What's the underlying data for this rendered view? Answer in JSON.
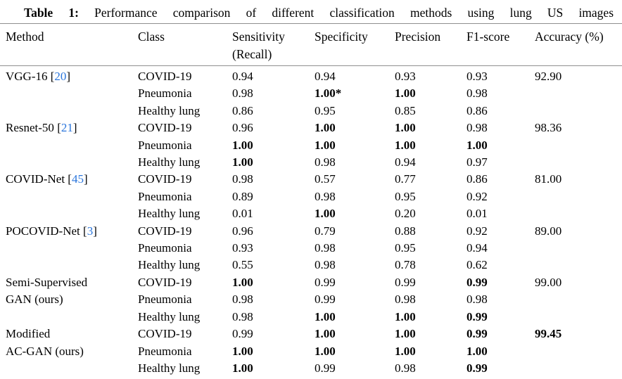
{
  "colors": {
    "citation": "#2b76dc",
    "rule": "#9b9b9b",
    "text": "#000000"
  },
  "title": {
    "prefix": "Table 1:",
    "text": "Performance comparison of different classification methods using lung US images"
  },
  "table": {
    "columns": [
      {
        "label": "Method"
      },
      {
        "label": "Class"
      },
      {
        "label": "Sensitivity",
        "sub": "(Recall)"
      },
      {
        "label": "Specificity"
      },
      {
        "label": "Precision"
      },
      {
        "label": "F1-score"
      },
      {
        "label": "Accuracy (%)"
      }
    ],
    "rows": [
      {
        "method": "VGG-16",
        "cite": "20",
        "class": "COVID-19",
        "values": [
          {
            "v": "0.94"
          },
          {
            "v": "0.94"
          },
          {
            "v": "0.93"
          },
          {
            "v": "0.93"
          },
          {
            "v": "92.90"
          }
        ]
      },
      {
        "method": "",
        "cite": "",
        "class": "Pneumonia",
        "values": [
          {
            "v": "0.98"
          },
          {
            "v": "1.00*",
            "b": true
          },
          {
            "v": "1.00",
            "b": true
          },
          {
            "v": "0.98"
          },
          {
            "v": ""
          }
        ]
      },
      {
        "method": "",
        "cite": "",
        "class": "Healthy lung",
        "values": [
          {
            "v": "0.86"
          },
          {
            "v": "0.95"
          },
          {
            "v": "0.85"
          },
          {
            "v": "0.86"
          },
          {
            "v": ""
          }
        ]
      },
      {
        "method": "Resnet-50",
        "cite": "21",
        "class": "COVID-19",
        "values": [
          {
            "v": "0.96"
          },
          {
            "v": "1.00",
            "b": true
          },
          {
            "v": "1.00",
            "b": true
          },
          {
            "v": "0.98"
          },
          {
            "v": "98.36"
          }
        ]
      },
      {
        "method": "",
        "cite": "",
        "class": "Pneumonia",
        "values": [
          {
            "v": "1.00",
            "b": true
          },
          {
            "v": "1.00",
            "b": true
          },
          {
            "v": "1.00",
            "b": true
          },
          {
            "v": "1.00",
            "b": true
          },
          {
            "v": ""
          }
        ]
      },
      {
        "method": "",
        "cite": "",
        "class": "Healthy lung",
        "values": [
          {
            "v": "1.00",
            "b": true
          },
          {
            "v": "0.98"
          },
          {
            "v": "0.94"
          },
          {
            "v": "0.97"
          },
          {
            "v": ""
          }
        ]
      },
      {
        "method": "COVID-Net",
        "cite": "45",
        "class": "COVID-19",
        "values": [
          {
            "v": "0.98"
          },
          {
            "v": "0.57"
          },
          {
            "v": "0.77"
          },
          {
            "v": "0.86"
          },
          {
            "v": "81.00"
          }
        ]
      },
      {
        "method": "",
        "cite": "",
        "class": "Pneumonia",
        "values": [
          {
            "v": "0.89"
          },
          {
            "v": "0.98"
          },
          {
            "v": "0.95"
          },
          {
            "v": "0.92"
          },
          {
            "v": ""
          }
        ]
      },
      {
        "method": "",
        "cite": "",
        "class": "Healthy lung",
        "values": [
          {
            "v": "0.01"
          },
          {
            "v": "1.00",
            "b": true
          },
          {
            "v": "0.20"
          },
          {
            "v": "0.01"
          },
          {
            "v": ""
          }
        ]
      },
      {
        "method": "POCOVID-Net",
        "cite": "3",
        "class": "COVID-19",
        "values": [
          {
            "v": "0.96"
          },
          {
            "v": "0.79"
          },
          {
            "v": "0.88"
          },
          {
            "v": "0.92"
          },
          {
            "v": "89.00"
          }
        ]
      },
      {
        "method": "",
        "cite": "",
        "class": "Pneumonia",
        "values": [
          {
            "v": "0.93"
          },
          {
            "v": "0.98"
          },
          {
            "v": "0.95"
          },
          {
            "v": "0.94"
          },
          {
            "v": ""
          }
        ]
      },
      {
        "method": "",
        "cite": "",
        "class": "Healthy lung",
        "values": [
          {
            "v": "0.55"
          },
          {
            "v": "0.98"
          },
          {
            "v": "0.78"
          },
          {
            "v": "0.62"
          },
          {
            "v": ""
          }
        ]
      },
      {
        "method": "Semi-Supervised",
        "cite": "",
        "class": "COVID-19",
        "values": [
          {
            "v": "1.00",
            "b": true
          },
          {
            "v": "0.99"
          },
          {
            "v": "0.99"
          },
          {
            "v": "0.99",
            "b": true
          },
          {
            "v": "99.00"
          }
        ]
      },
      {
        "method": "GAN (ours)",
        "cite": "",
        "class": "Pneumonia",
        "values": [
          {
            "v": "0.98"
          },
          {
            "v": "0.99"
          },
          {
            "v": "0.98"
          },
          {
            "v": "0.98"
          },
          {
            "v": ""
          }
        ]
      },
      {
        "method": "",
        "cite": "",
        "class": "Healthy lung",
        "values": [
          {
            "v": "0.98"
          },
          {
            "v": "1.00",
            "b": true
          },
          {
            "v": "1.00",
            "b": true
          },
          {
            "v": "0.99",
            "b": true
          },
          {
            "v": ""
          }
        ]
      },
      {
        "method": "Modified",
        "cite": "",
        "class": "COVID-19",
        "values": [
          {
            "v": "0.99"
          },
          {
            "v": "1.00",
            "b": true
          },
          {
            "v": "1.00",
            "b": true
          },
          {
            "v": "0.99",
            "b": true
          },
          {
            "v": "99.45",
            "b": true
          }
        ]
      },
      {
        "method": "AC-GAN (ours)",
        "cite": "",
        "class": "Pneumonia",
        "values": [
          {
            "v": "1.00",
            "b": true
          },
          {
            "v": "1.00",
            "b": true
          },
          {
            "v": "1.00",
            "b": true
          },
          {
            "v": "1.00",
            "b": true
          },
          {
            "v": ""
          }
        ]
      },
      {
        "method": "",
        "cite": "",
        "class": "Healthy lung",
        "values": [
          {
            "v": "1.00",
            "b": true
          },
          {
            "v": "0.99"
          },
          {
            "v": "0.98"
          },
          {
            "v": "0.99",
            "b": true
          },
          {
            "v": ""
          }
        ]
      }
    ]
  }
}
